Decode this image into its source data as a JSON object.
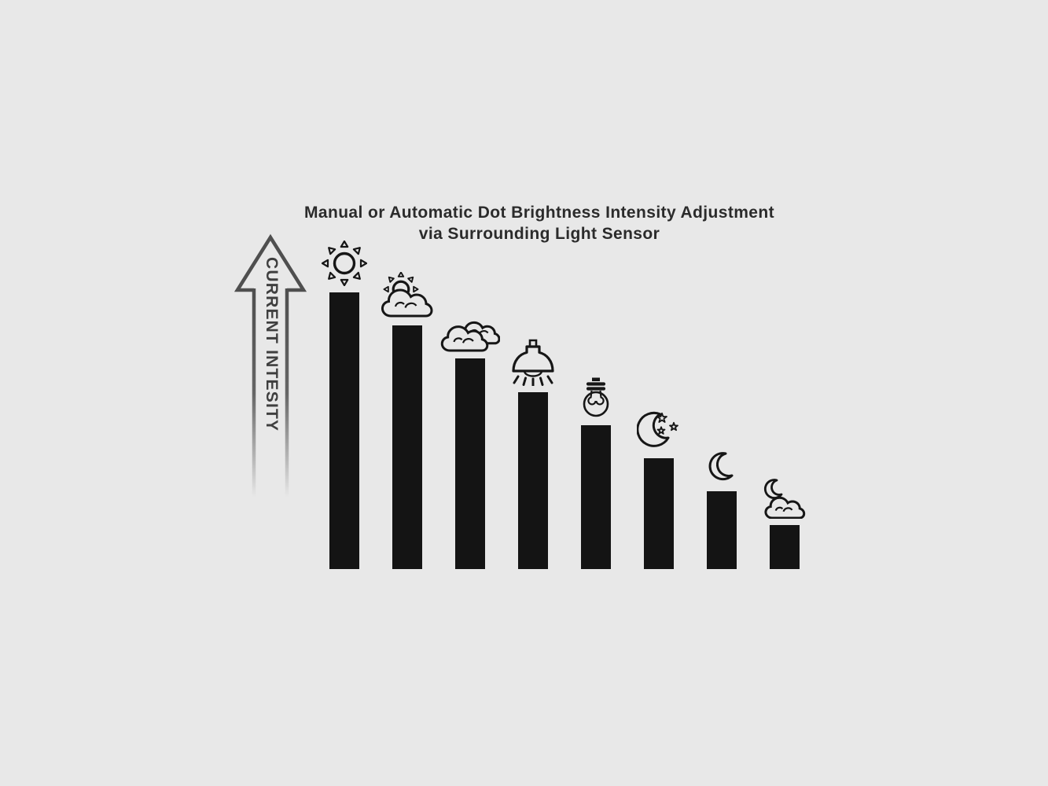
{
  "title": {
    "line1": "Manual or Automatic Dot Brightness Intensity Adjustment",
    "line2": "via Surrounding Light Sensor"
  },
  "y_axis": {
    "label": "CURRENT INTESITY"
  },
  "chart_data": {
    "type": "bar",
    "title": "Manual or Automatic Dot Brightness Intensity Adjustment via Surrounding Light Sensor",
    "ylabel": "CURRENT INTESITY",
    "xlabel": "",
    "categories": [
      "sun",
      "sun-behind-cloud",
      "clouds",
      "ceiling-lamp",
      "light-bulb",
      "moon-with-stars",
      "crescent-moon",
      "moon-behind-cloud"
    ],
    "values": [
      100,
      88,
      76,
      64,
      52,
      40,
      28,
      16
    ],
    "ylim": [
      0,
      100
    ],
    "grid": false,
    "legend_position": "none",
    "bar_color": "#141414"
  },
  "colors": {
    "background": "#e8e8e8",
    "bar": "#141414",
    "ink": "#161616",
    "arrow": "#4f4f4f",
    "title": "#2b2b2b",
    "axis_label": "#3f3f3f"
  }
}
